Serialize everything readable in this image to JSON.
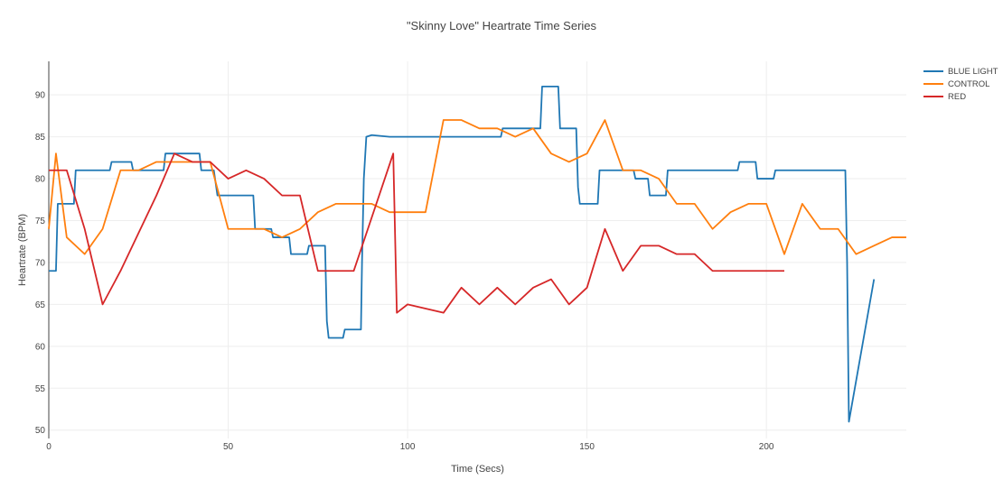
{
  "chart_data": {
    "type": "line",
    "title": "\"Skinny Love\" Heartrate Time Series",
    "xlabel": "Time (Secs)",
    "ylabel": "Heartrate (BPM)",
    "xlim": [
      0,
      239
    ],
    "ylim": [
      49,
      94
    ],
    "xticks": [
      0,
      50,
      100,
      150,
      200
    ],
    "yticks": [
      50,
      55,
      60,
      65,
      70,
      75,
      80,
      85,
      90
    ],
    "grid": true,
    "legend_position": "top-right",
    "series": [
      {
        "name": "BLUE LIGHT",
        "color": "#1f77b4",
        "points": [
          [
            0,
            69
          ],
          [
            2,
            69
          ],
          [
            2.5,
            77
          ],
          [
            3,
            77
          ],
          [
            7,
            77
          ],
          [
            7.5,
            81
          ],
          [
            8,
            81
          ],
          [
            17,
            81
          ],
          [
            17.5,
            82
          ],
          [
            18,
            82
          ],
          [
            23,
            82
          ],
          [
            23.5,
            81
          ],
          [
            24,
            81
          ],
          [
            32,
            81
          ],
          [
            32.5,
            83
          ],
          [
            33,
            83
          ],
          [
            42,
            83
          ],
          [
            42.5,
            81
          ],
          [
            43,
            81
          ],
          [
            46,
            81
          ],
          [
            47,
            78
          ],
          [
            48,
            78
          ],
          [
            57,
            78
          ],
          [
            57.5,
            74
          ],
          [
            58,
            74
          ],
          [
            62,
            74
          ],
          [
            62.5,
            73
          ],
          [
            63,
            73
          ],
          [
            67,
            73
          ],
          [
            67.5,
            71
          ],
          [
            68,
            71
          ],
          [
            72,
            71
          ],
          [
            72.5,
            72
          ],
          [
            73,
            72
          ],
          [
            77,
            72
          ],
          [
            77.5,
            63
          ],
          [
            78,
            61
          ],
          [
            80,
            61
          ],
          [
            82,
            61
          ],
          [
            82.5,
            62
          ],
          [
            83,
            62
          ],
          [
            87,
            62
          ],
          [
            87.3,
            70
          ],
          [
            87.8,
            80
          ],
          [
            88.5,
            85
          ],
          [
            90,
            85.2
          ],
          [
            95,
            85
          ],
          [
            100,
            85
          ],
          [
            126,
            85
          ],
          [
            126.5,
            86
          ],
          [
            137,
            86
          ],
          [
            137.5,
            91
          ],
          [
            138,
            91
          ],
          [
            142,
            91
          ],
          [
            142.5,
            86
          ],
          [
            143,
            86
          ],
          [
            147,
            86
          ],
          [
            147.5,
            79
          ],
          [
            148,
            77
          ],
          [
            150,
            77
          ],
          [
            153,
            77
          ],
          [
            153.5,
            81
          ],
          [
            154,
            81
          ],
          [
            163,
            81
          ],
          [
            163.5,
            80
          ],
          [
            164,
            80
          ],
          [
            167,
            80
          ],
          [
            167.5,
            78
          ],
          [
            168,
            78
          ],
          [
            172,
            78
          ],
          [
            172.5,
            81
          ],
          [
            173,
            81
          ],
          [
            192,
            81
          ],
          [
            192.5,
            82
          ],
          [
            193,
            82
          ],
          [
            197,
            82
          ],
          [
            197.5,
            80
          ],
          [
            198,
            80
          ],
          [
            202,
            80
          ],
          [
            202.5,
            81
          ],
          [
            203,
            81
          ],
          [
            218,
            81
          ],
          [
            222,
            81
          ],
          [
            222.5,
            70
          ],
          [
            223,
            51
          ],
          [
            230,
            68
          ]
        ]
      },
      {
        "name": "CONTROL",
        "color": "#ff7f0e",
        "points": [
          [
            0,
            74
          ],
          [
            2,
            83
          ],
          [
            5,
            73
          ],
          [
            10,
            71
          ],
          [
            15,
            74
          ],
          [
            20,
            81
          ],
          [
            25,
            81
          ],
          [
            30,
            82
          ],
          [
            35,
            82
          ],
          [
            40,
            82
          ],
          [
            45,
            82
          ],
          [
            50,
            74
          ],
          [
            55,
            74
          ],
          [
            60,
            74
          ],
          [
            65,
            73
          ],
          [
            70,
            74
          ],
          [
            75,
            76
          ],
          [
            80,
            77
          ],
          [
            85,
            77
          ],
          [
            90,
            77
          ],
          [
            95,
            76
          ],
          [
            100,
            76
          ],
          [
            105,
            76
          ],
          [
            110,
            87
          ],
          [
            115,
            87
          ],
          [
            120,
            86
          ],
          [
            125,
            86
          ],
          [
            130,
            85
          ],
          [
            135,
            86
          ],
          [
            140,
            83
          ],
          [
            145,
            82
          ],
          [
            150,
            83
          ],
          [
            155,
            87
          ],
          [
            160,
            81
          ],
          [
            165,
            81
          ],
          [
            170,
            80
          ],
          [
            175,
            77
          ],
          [
            180,
            77
          ],
          [
            185,
            74
          ],
          [
            190,
            76
          ],
          [
            195,
            77
          ],
          [
            200,
            77
          ],
          [
            205,
            71
          ],
          [
            210,
            77
          ],
          [
            215,
            74
          ],
          [
            220,
            74
          ],
          [
            225,
            71
          ],
          [
            230,
            72
          ],
          [
            235,
            73
          ],
          [
            239,
            73
          ]
        ]
      },
      {
        "name": "RED",
        "color": "#d62728",
        "points": [
          [
            0,
            81
          ],
          [
            5,
            81
          ],
          [
            10,
            74
          ],
          [
            15,
            65
          ],
          [
            20,
            69
          ],
          [
            30,
            78
          ],
          [
            35,
            83
          ],
          [
            40,
            82
          ],
          [
            45,
            82
          ],
          [
            50,
            80
          ],
          [
            55,
            81
          ],
          [
            60,
            80
          ],
          [
            65,
            78
          ],
          [
            70,
            78
          ],
          [
            75,
            69
          ],
          [
            80,
            69
          ],
          [
            85,
            69
          ],
          [
            96,
            83
          ],
          [
            97,
            64
          ],
          [
            100,
            65
          ],
          [
            110,
            64
          ],
          [
            115,
            67
          ],
          [
            120,
            65
          ],
          [
            125,
            67
          ],
          [
            130,
            65
          ],
          [
            135,
            67
          ],
          [
            140,
            68
          ],
          [
            145,
            65
          ],
          [
            150,
            67
          ],
          [
            155,
            74
          ],
          [
            160,
            69
          ],
          [
            165,
            72
          ],
          [
            170,
            72
          ],
          [
            175,
            71
          ],
          [
            180,
            71
          ],
          [
            185,
            69
          ],
          [
            190,
            69
          ],
          [
            195,
            69
          ],
          [
            200,
            69
          ],
          [
            205,
            69
          ]
        ]
      }
    ]
  }
}
